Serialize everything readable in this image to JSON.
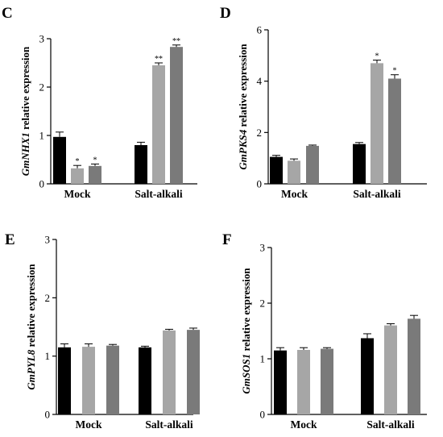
{
  "colors": {
    "series": [
      "#000000",
      "#a6a6a6",
      "#7a7a7a"
    ],
    "error": "#000000"
  },
  "chart_data": [
    {
      "type": "bar",
      "panel": "C",
      "gene": "GmNHX1",
      "ylabel_suffix": " relative expression",
      "ylim": [
        0,
        3
      ],
      "yticks": [
        0,
        1,
        2,
        3
      ],
      "grid": false,
      "categories": [
        "Mock",
        "Salt-alkali"
      ],
      "series": [
        {
          "values": [
            0.97,
            0.8
          ],
          "errors": [
            0.1,
            0.06
          ],
          "sig": [
            "",
            ""
          ]
        },
        {
          "values": [
            0.32,
            2.45
          ],
          "errors": [
            0.06,
            0.05
          ],
          "sig": [
            "*",
            "**"
          ]
        },
        {
          "values": [
            0.37,
            2.83
          ],
          "errors": [
            0.04,
            0.04
          ],
          "sig": [
            "*",
            "**"
          ]
        }
      ]
    },
    {
      "type": "bar",
      "panel": "D",
      "gene": "GmPKS4",
      "ylabel_suffix": " relative expression",
      "ylim": [
        0,
        6
      ],
      "yticks": [
        0,
        2,
        4,
        6
      ],
      "grid": false,
      "categories": [
        "Mock",
        "Salt-alkali"
      ],
      "series": [
        {
          "values": [
            1.05,
            1.55
          ],
          "errors": [
            0.06,
            0.06
          ],
          "sig": [
            "",
            ""
          ]
        },
        {
          "values": [
            0.9,
            4.7
          ],
          "errors": [
            0.07,
            0.12
          ],
          "sig": [
            "",
            "*"
          ]
        },
        {
          "values": [
            1.48,
            4.1
          ],
          "errors": [
            0.03,
            0.15
          ],
          "sig": [
            "",
            "*"
          ]
        }
      ]
    },
    {
      "type": "bar",
      "panel": "E",
      "gene": "GmPYL8",
      "ylabel_suffix": " relative expression",
      "ylim": [
        0,
        3
      ],
      "yticks": [
        0,
        1,
        2,
        3
      ],
      "grid": false,
      "categories": [
        "Mock",
        "Salt-alkali"
      ],
      "series": [
        {
          "values": [
            1.15,
            1.15
          ],
          "errors": [
            0.06,
            0.02
          ],
          "sig": [
            "",
            ""
          ]
        },
        {
          "values": [
            1.16,
            1.44
          ],
          "errors": [
            0.05,
            0.02
          ],
          "sig": [
            "",
            ""
          ]
        },
        {
          "values": [
            1.18,
            1.45
          ],
          "errors": [
            0.02,
            0.03
          ],
          "sig": [
            "",
            ""
          ]
        }
      ]
    },
    {
      "type": "bar",
      "panel": "F",
      "gene": "GmSOS1",
      "ylabel_suffix": " relative expression",
      "ylim": [
        0,
        3
      ],
      "yticks": [
        0,
        1,
        2,
        3
      ],
      "grid": false,
      "categories": [
        "Mock",
        "Salt-alkali"
      ],
      "series": [
        {
          "values": [
            1.15,
            1.37
          ],
          "errors": [
            0.05,
            0.08
          ],
          "sig": [
            "",
            ""
          ]
        },
        {
          "values": [
            1.16,
            1.6
          ],
          "errors": [
            0.04,
            0.03
          ],
          "sig": [
            "",
            ""
          ]
        },
        {
          "values": [
            1.18,
            1.72
          ],
          "errors": [
            0.02,
            0.06
          ],
          "sig": [
            "",
            ""
          ]
        }
      ]
    }
  ]
}
